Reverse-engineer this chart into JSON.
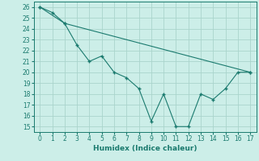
{
  "line1_x": [
    0,
    1,
    2,
    3,
    4,
    5,
    6,
    7,
    8,
    9,
    10,
    11,
    12,
    13,
    14,
    15,
    16,
    17
  ],
  "line1_y": [
    26,
    25.5,
    24.5,
    22.5,
    21,
    21.5,
    20,
    19.5,
    18.5,
    15.5,
    18,
    15,
    15,
    18,
    17.5,
    18.5,
    20,
    20
  ],
  "line2_x": [
    0,
    2,
    17
  ],
  "line2_y": [
    26,
    24.5,
    20
  ],
  "line_color": "#1a7a6e",
  "bg_color": "#cceee8",
  "grid_color": "#aad4cc",
  "xlabel": "Humidex (Indice chaleur)",
  "ylim": [
    14.5,
    26.5
  ],
  "xlim": [
    -0.5,
    17.5
  ],
  "yticks": [
    15,
    16,
    17,
    18,
    19,
    20,
    21,
    22,
    23,
    24,
    25,
    26
  ],
  "xticks": [
    0,
    1,
    2,
    3,
    4,
    5,
    6,
    7,
    8,
    9,
    10,
    11,
    12,
    13,
    14,
    15,
    16,
    17
  ],
  "marker": "+"
}
